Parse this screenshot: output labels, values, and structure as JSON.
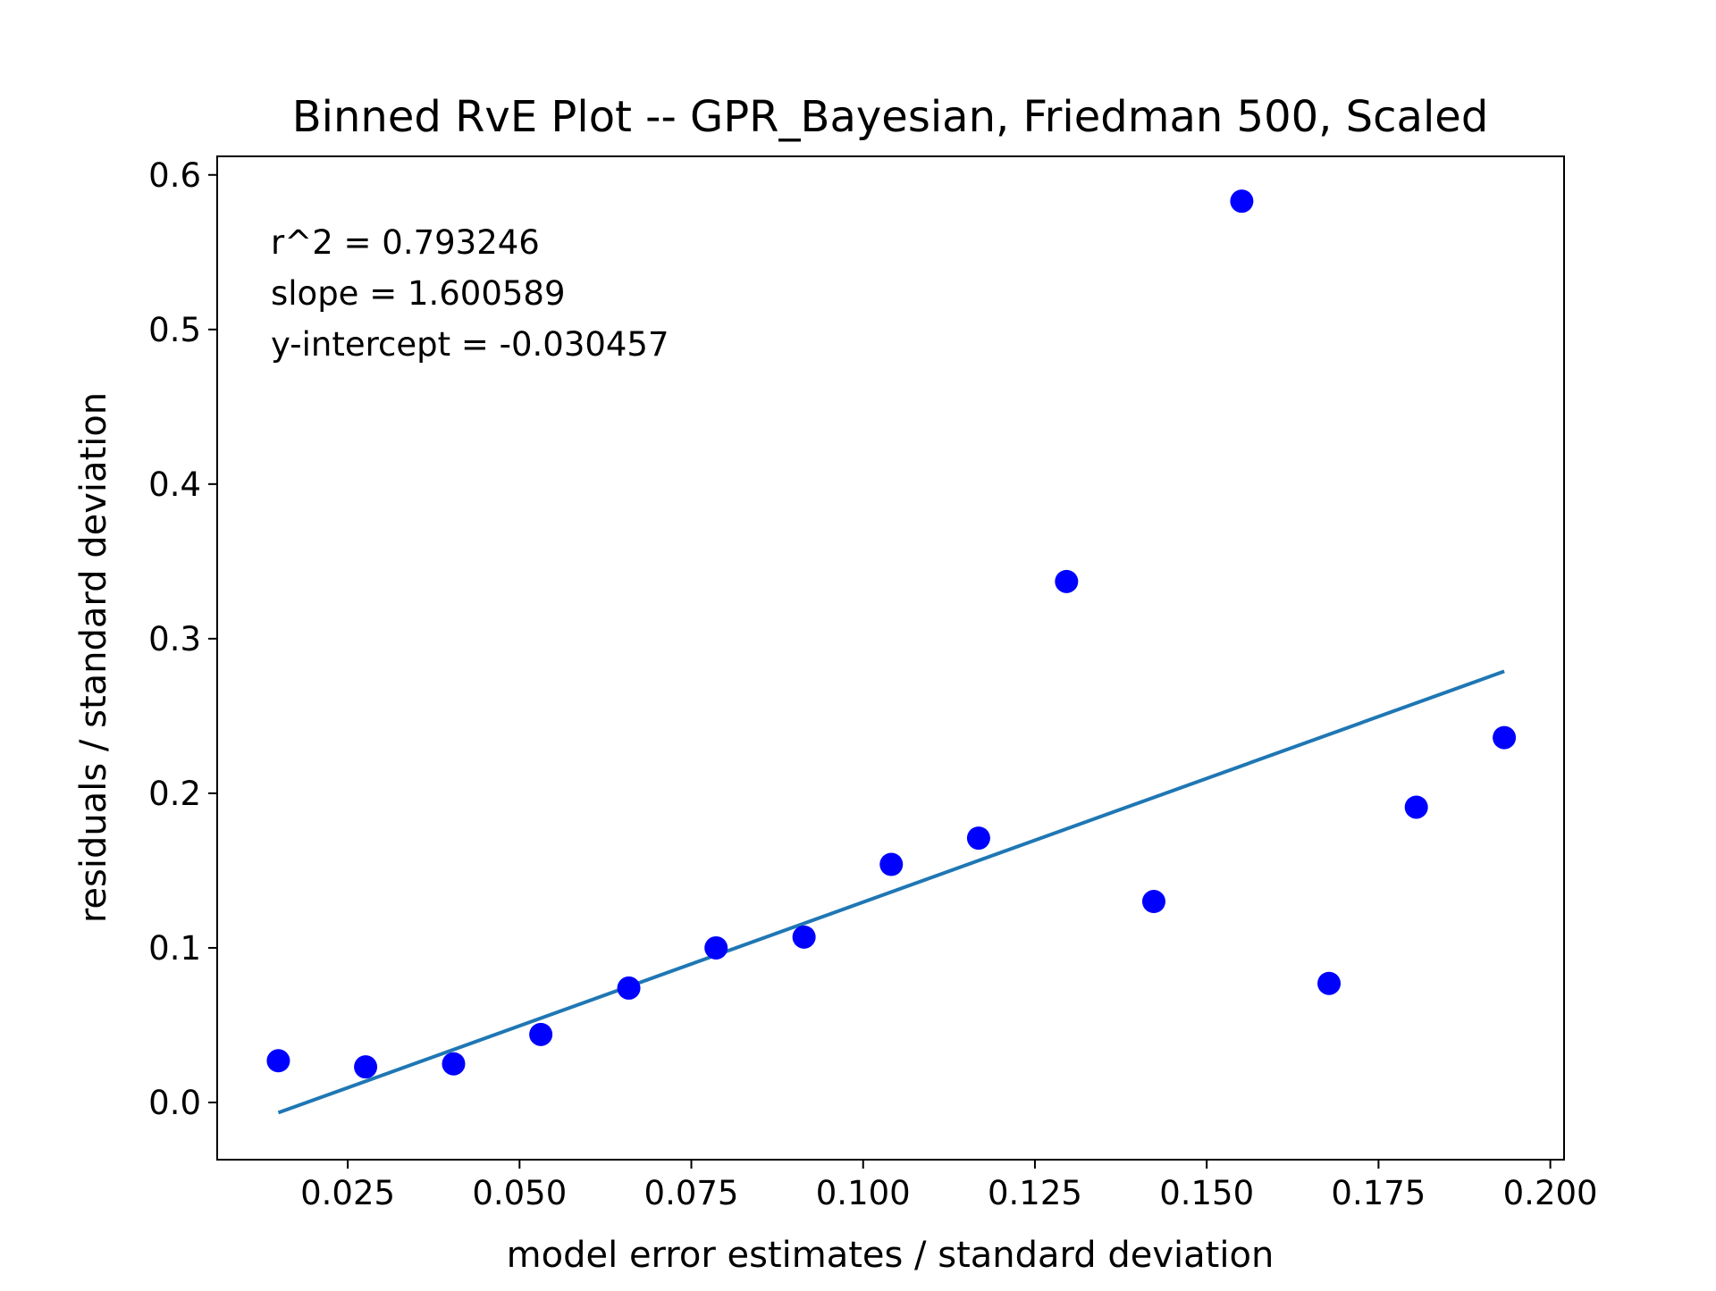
{
  "chart_data": {
    "type": "scatter",
    "title": "Binned RvE Plot -- GPR_Bayesian, Friedman 500, Scaled",
    "xlabel": "model error estimates / standard deviation",
    "ylabel": "residuals / standard deviation",
    "xlim": [
      0.006,
      0.202
    ],
    "ylim": [
      -0.037,
      0.612
    ],
    "xticks": [
      "0.025",
      "0.050",
      "0.075",
      "0.100",
      "0.125",
      "0.150",
      "0.175",
      "0.200"
    ],
    "yticks": [
      "0.0",
      "0.1",
      "0.2",
      "0.3",
      "0.4",
      "0.5",
      "0.6"
    ],
    "grid": false,
    "series": [
      {
        "kind": "scatter",
        "color": "#0000ff",
        "x": [
          0.0149,
          0.0276,
          0.0404,
          0.0531,
          0.0659,
          0.0786,
          0.0914,
          0.1041,
          0.1168,
          0.1296,
          0.1423,
          0.1551,
          0.1678,
          0.1805,
          0.1933
        ],
        "y": [
          0.027,
          0.023,
          0.025,
          0.044,
          0.074,
          0.1,
          0.107,
          0.154,
          0.171,
          0.337,
          0.13,
          0.583,
          0.077,
          0.191,
          0.236
        ]
      },
      {
        "kind": "line",
        "color": "#1f77b4",
        "x": [
          0.0149,
          0.1933
        ],
        "y": [
          -0.0066,
          0.2789
        ]
      }
    ],
    "annotations": [
      "r^2 = 0.793246",
      "slope = 1.600589",
      "y-intercept = -0.030457"
    ]
  }
}
